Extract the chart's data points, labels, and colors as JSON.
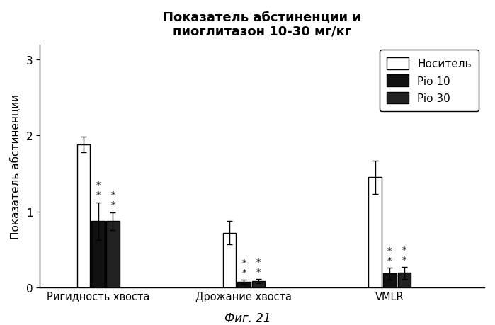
{
  "title": "Показатель абстиненции и\nпиоглитазон 10-30 мг/кг",
  "ylabel": "Показатель абстиненции",
  "xlabel_fig": "Фиг. 21",
  "groups": [
    "Ригидность хвоста",
    "Дрожание хвоста",
    "VMLR"
  ],
  "legend_labels": [
    "Носитель",
    "Pio 10",
    "Pio 30"
  ],
  "bar_colors": [
    "#ffffff",
    "#111111",
    "#222222"
  ],
  "bar_edgecolors": [
    "#000000",
    "#000000",
    "#000000"
  ],
  "values": [
    [
      1.88,
      0.87,
      0.87
    ],
    [
      0.72,
      0.07,
      0.08
    ],
    [
      1.45,
      0.18,
      0.19
    ]
  ],
  "errors": [
    [
      0.1,
      0.25,
      0.12
    ],
    [
      0.15,
      0.03,
      0.03
    ],
    [
      0.22,
      0.08,
      0.08
    ]
  ],
  "ylim": [
    0,
    3.2
  ],
  "yticks": [
    0,
    1,
    2,
    3
  ],
  "bar_width": 0.18,
  "group_centers": [
    1.0,
    3.0,
    5.0
  ],
  "xlim": [
    0.2,
    6.3
  ]
}
